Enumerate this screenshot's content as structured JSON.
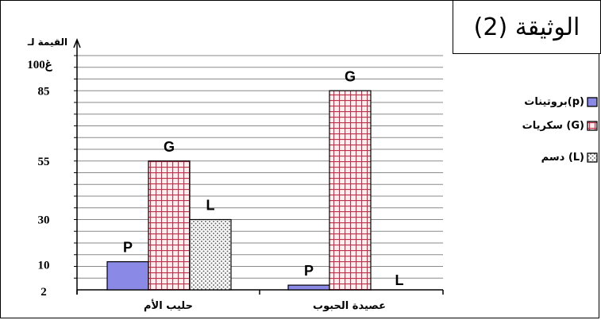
{
  "document_label": "الوثيقة (2)",
  "colors": {
    "protein": "#8a8ae6",
    "sugar_grid": "#c0304a",
    "fat_dots": "#6a6a6a",
    "axis": "#000000"
  },
  "chart_data": {
    "type": "bar",
    "categories": [
      "حليب الأم",
      "عصيدة الحبوب"
    ],
    "series": [
      {
        "name": "بروتينات(p)",
        "label": "P",
        "pattern": "solid",
        "values": [
          12,
          2
        ]
      },
      {
        "name": "سكريات (G)",
        "label": "G",
        "pattern": "grid",
        "values": [
          55,
          85
        ]
      },
      {
        "name": "دسم (L)",
        "label": "L",
        "pattern": "dots",
        "values": [
          30,
          0
        ]
      }
    ],
    "ylabel_line1": "القيمة لـ",
    "ylabel_line2": "100غ",
    "yticks": [
      2,
      10,
      30,
      55,
      85
    ],
    "ylim": [
      0,
      100
    ],
    "grid": true,
    "legend_position": "right"
  }
}
